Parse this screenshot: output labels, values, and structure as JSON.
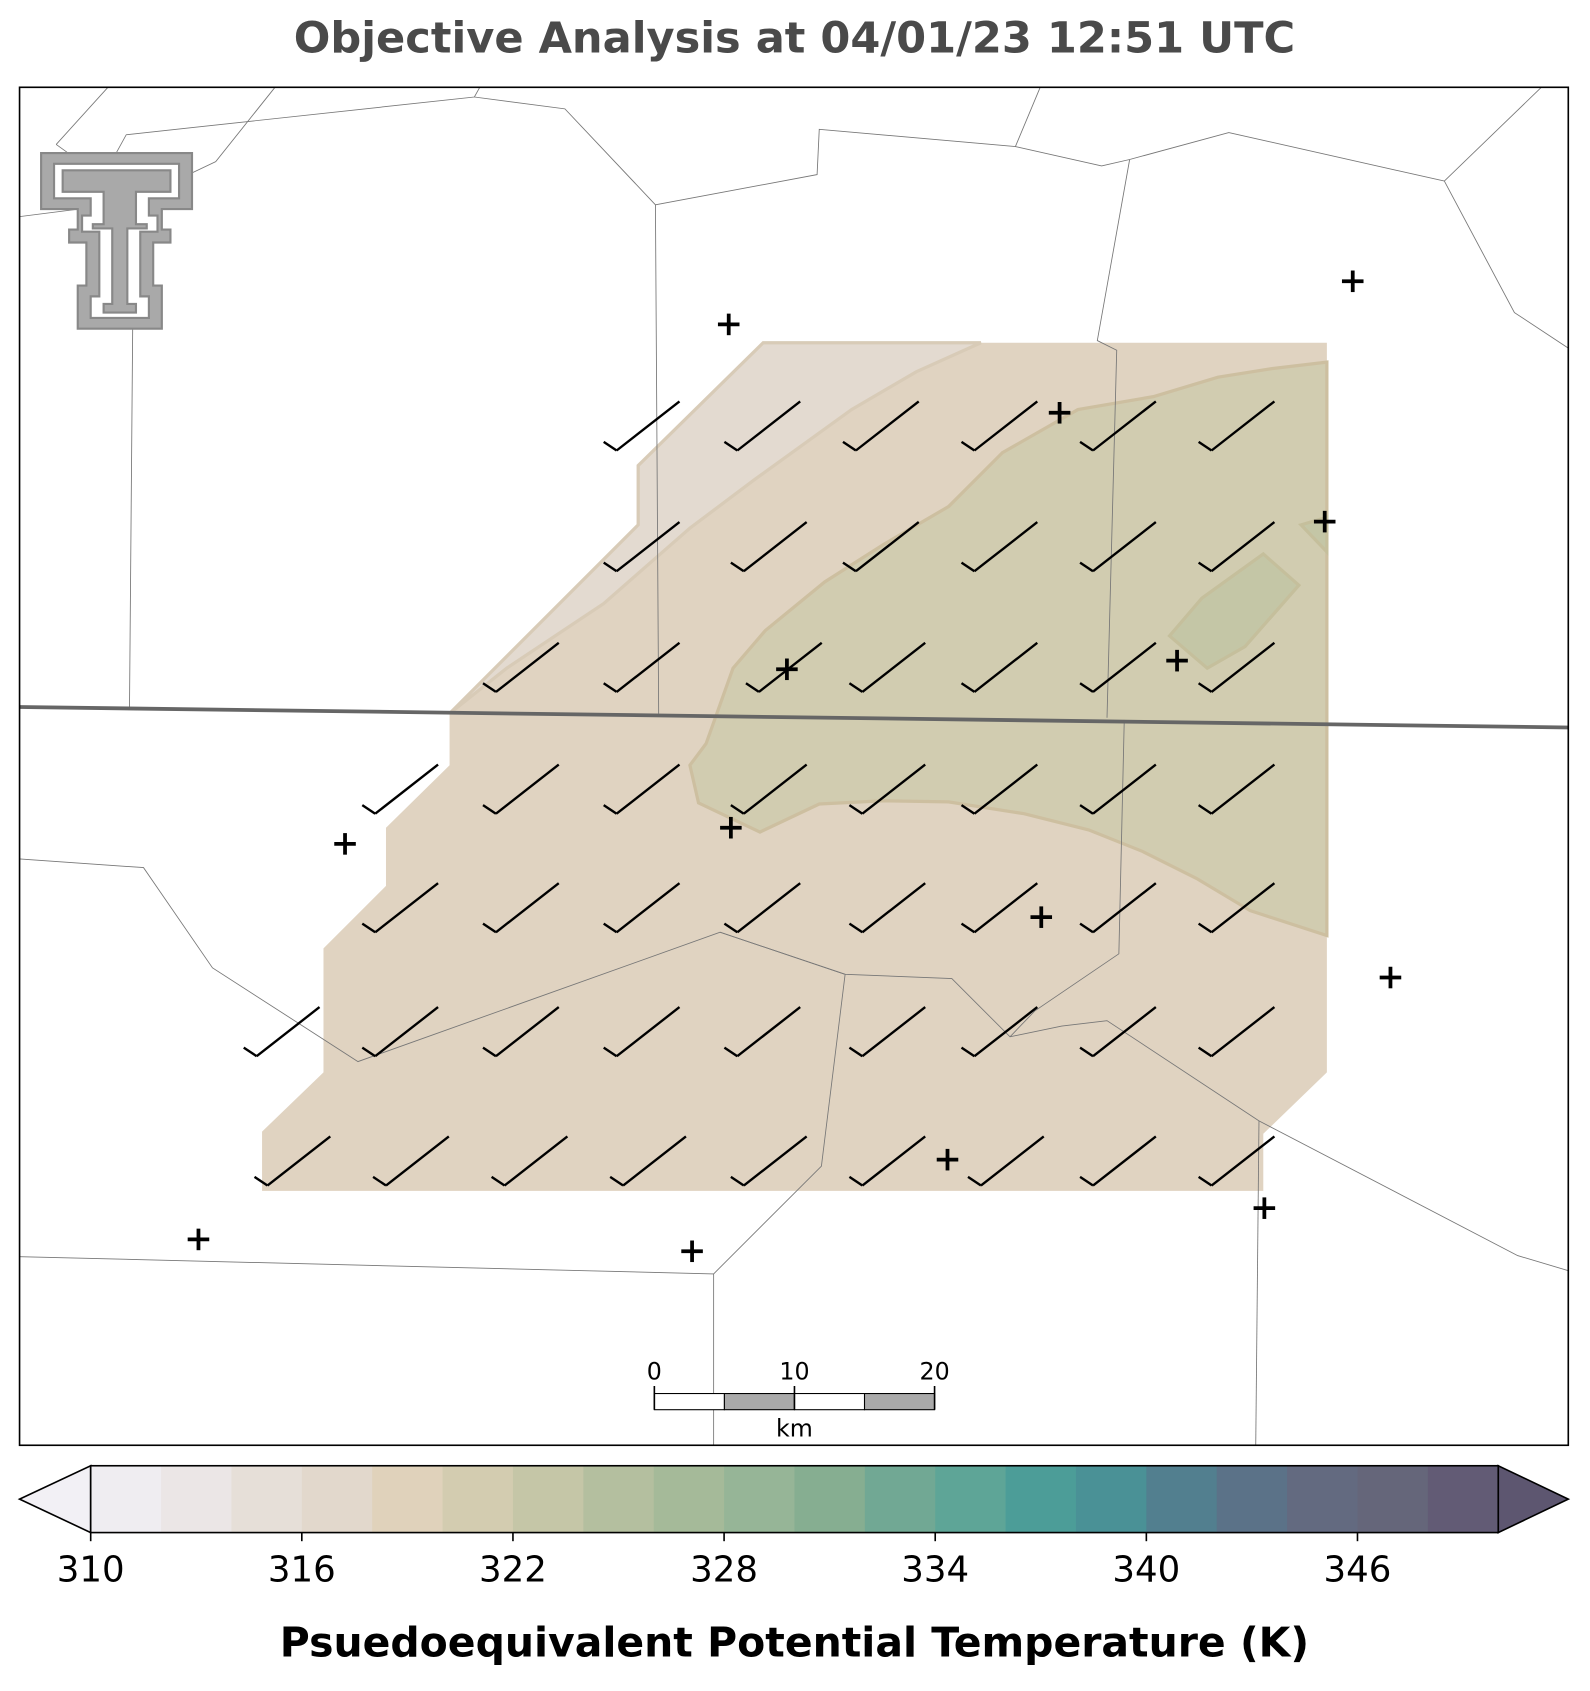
{
  "title": "Objective Analysis at 04/01/23 12:51 UTC",
  "colorbar": {
    "label": "Psuedoequivalent Potential Temperature (K)",
    "clim": [
      310,
      350
    ],
    "ticks": [
      310,
      316,
      322,
      328,
      334,
      340,
      346
    ],
    "colors": [
      "#efedf1",
      "#ebe6e6",
      "#e6dfd8",
      "#e2d8cc",
      "#e0d2bb",
      "#d3ccb0",
      "#c5c6a7",
      "#b4bf9f",
      "#a5ba99",
      "#96b597",
      "#86ae91",
      "#71a894",
      "#5ea597",
      "#4c9d98",
      "#4a9196",
      "#527f8f",
      "#5b7288",
      "#636a80",
      "#65667a",
      "#625b75"
    ],
    "under_color": "#f2f0f5",
    "over_color": "#5d5670"
  },
  "scale_bar": {
    "ticks": [
      0,
      10,
      20
    ],
    "unit": "km"
  }
}
